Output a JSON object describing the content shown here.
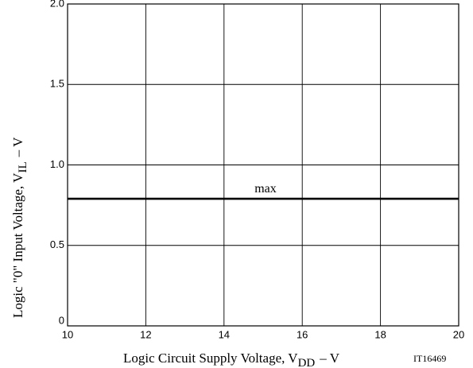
{
  "chart_data": {
    "type": "line",
    "xlabel": {
      "text": "Logic Circuit Supply Voltage, V",
      "sub": "DD",
      "unit": "– V"
    },
    "ylabel": {
      "text": "Logic \"0\" Input Voltage, V",
      "sub": "IL",
      "unit": "– V"
    },
    "figure_code": "IT16469",
    "x": [
      10,
      20
    ],
    "series": [
      {
        "name": "max",
        "color": "#000000",
        "values": [
          0.79,
          0.79
        ]
      }
    ],
    "xlim": [
      10,
      20
    ],
    "xticks": [
      10,
      12,
      14,
      16,
      18,
      20
    ],
    "ylim": [
      0,
      2
    ],
    "yticks": [
      0,
      0.5,
      {
        "value": 1,
        "label": "1.0"
      },
      1.5,
      {
        "value": 2,
        "label": "2.0"
      }
    ],
    "grid": true
  }
}
